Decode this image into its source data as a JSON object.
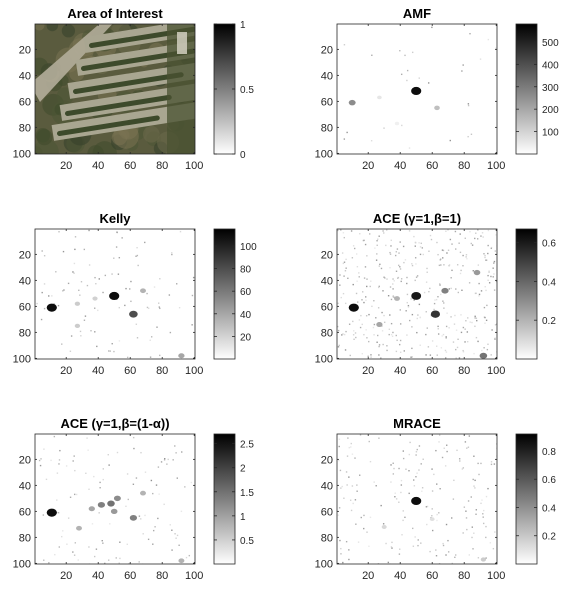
{
  "colors": {
    "background": "#ffffff",
    "axis": "#262626",
    "map_low": "#ffffff",
    "map_high": "#000000"
  },
  "chart_data": [
    {
      "type": "heatmap",
      "title": "Area of Interest",
      "image": "aerial-photo-parking-lot",
      "xticks": [
        "20",
        "40",
        "60",
        "80",
        "100"
      ],
      "yticks": [
        "20",
        "40",
        "60",
        "80",
        "100"
      ],
      "xlim": [
        0.5,
        100.5
      ],
      "ylim": [
        0.5,
        100.5
      ],
      "colorbar": {
        "range": [
          0,
          1
        ],
        "ticks": [
          "0",
          "0.5",
          "1"
        ],
        "tick_values": [
          0,
          0.5,
          1
        ]
      },
      "blobs": [],
      "noise": 0
    },
    {
      "type": "heatmap",
      "title": "AMF",
      "xticks": [
        "20",
        "40",
        "60",
        "80",
        "100"
      ],
      "yticks": [
        "20",
        "40",
        "60",
        "80",
        "100"
      ],
      "xlim": [
        0.5,
        100.5
      ],
      "ylim": [
        0.5,
        100.5
      ],
      "colorbar": {
        "range": [
          0,
          580
        ],
        "ticks": [
          "100",
          "200",
          "300",
          "400",
          "500"
        ],
        "tick_values": [
          100,
          200,
          300,
          400,
          500
        ]
      },
      "blobs": [
        {
          "x": 50,
          "y": 52,
          "level": 0.95
        },
        {
          "x": 10,
          "y": 61,
          "level": 0.45
        },
        {
          "x": 63,
          "y": 65,
          "level": 0.25
        },
        {
          "x": 27,
          "y": 57,
          "level": 0.1
        },
        {
          "x": 38,
          "y": 77,
          "level": 0.06
        }
      ],
      "noise": 0.02
    },
    {
      "type": "heatmap",
      "title": "Kelly",
      "xticks": [
        "20",
        "40",
        "60",
        "80",
        "100"
      ],
      "yticks": [
        "20",
        "40",
        "60",
        "80",
        "100"
      ],
      "xlim": [
        0.5,
        100.5
      ],
      "ylim": [
        0.5,
        100.5
      ],
      "colorbar": {
        "range": [
          0,
          115
        ],
        "ticks": [
          "20",
          "40",
          "60",
          "80",
          "100"
        ],
        "tick_values": [
          20,
          40,
          60,
          80,
          100
        ]
      },
      "blobs": [
        {
          "x": 11,
          "y": 61,
          "level": 0.95
        },
        {
          "x": 50,
          "y": 52,
          "level": 0.95
        },
        {
          "x": 62,
          "y": 66,
          "level": 0.7
        },
        {
          "x": 68,
          "y": 48,
          "level": 0.3
        },
        {
          "x": 27,
          "y": 58,
          "level": 0.2
        },
        {
          "x": 38,
          "y": 54,
          "level": 0.18
        },
        {
          "x": 27,
          "y": 75,
          "level": 0.2
        },
        {
          "x": 92,
          "y": 98,
          "level": 0.35
        }
      ],
      "noise": 0.07
    },
    {
      "type": "heatmap",
      "title": "ACE (γ=1,β=1)",
      "xticks": [
        "20",
        "40",
        "60",
        "80",
        "100"
      ],
      "yticks": [
        "20",
        "40",
        "60",
        "80",
        "100"
      ],
      "xlim": [
        0.5,
        100.5
      ],
      "ylim": [
        0.5,
        100.5
      ],
      "colorbar": {
        "range": [
          0,
          0.67
        ],
        "ticks": [
          "0.2",
          "0.4",
          "0.6"
        ],
        "tick_values": [
          0.2,
          0.4,
          0.6
        ]
      },
      "blobs": [
        {
          "x": 11,
          "y": 61,
          "level": 0.95
        },
        {
          "x": 50,
          "y": 52,
          "level": 0.9
        },
        {
          "x": 62,
          "y": 66,
          "level": 0.8
        },
        {
          "x": 68,
          "y": 48,
          "level": 0.5
        },
        {
          "x": 88,
          "y": 34,
          "level": 0.4
        },
        {
          "x": 27,
          "y": 74,
          "level": 0.35
        },
        {
          "x": 38,
          "y": 54,
          "level": 0.3
        },
        {
          "x": 92,
          "y": 98,
          "level": 0.55
        }
      ],
      "noise": 0.28
    },
    {
      "type": "heatmap",
      "title": "ACE (γ=1,β=(1-α))",
      "xticks": [
        "20",
        "40",
        "60",
        "80",
        "100"
      ],
      "yticks": [
        "20",
        "40",
        "60",
        "80",
        "100"
      ],
      "xlim": [
        0.5,
        100.5
      ],
      "ylim": [
        0.5,
        100.5
      ],
      "colorbar": {
        "range": [
          0,
          2.7
        ],
        "ticks": [
          "0.5",
          "1",
          "1.5",
          "2",
          "2.5"
        ],
        "tick_values": [
          0.5,
          1,
          1.5,
          2,
          2.5
        ]
      },
      "blobs": [
        {
          "x": 11,
          "y": 61,
          "level": 0.95
        },
        {
          "x": 42,
          "y": 55,
          "level": 0.5
        },
        {
          "x": 48,
          "y": 54,
          "level": 0.55
        },
        {
          "x": 52,
          "y": 50,
          "level": 0.45
        },
        {
          "x": 36,
          "y": 58,
          "level": 0.35
        },
        {
          "x": 50,
          "y": 60,
          "level": 0.4
        },
        {
          "x": 62,
          "y": 65,
          "level": 0.5
        },
        {
          "x": 68,
          "y": 46,
          "level": 0.3
        },
        {
          "x": 28,
          "y": 73,
          "level": 0.3
        },
        {
          "x": 92,
          "y": 98,
          "level": 0.3
        }
      ],
      "noise": 0.08
    },
    {
      "type": "heatmap",
      "title": "MRACE",
      "xticks": [
        "20",
        "40",
        "60",
        "80",
        "100"
      ],
      "yticks": [
        "20",
        "40",
        "60",
        "80",
        "100"
      ],
      "xlim": [
        0.5,
        100.5
      ],
      "ylim": [
        0.5,
        100.5
      ],
      "colorbar": {
        "range": [
          0,
          0.92
        ],
        "ticks": [
          "0.2",
          "0.4",
          "0.6",
          "0.8"
        ],
        "tick_values": [
          0.2,
          0.4,
          0.6,
          0.8
        ]
      },
      "blobs": [
        {
          "x": 50,
          "y": 52,
          "level": 0.95
        },
        {
          "x": 30,
          "y": 72,
          "level": 0.15
        },
        {
          "x": 60,
          "y": 66,
          "level": 0.12
        },
        {
          "x": 92,
          "y": 97,
          "level": 0.2
        }
      ],
      "noise": 0.14
    }
  ]
}
